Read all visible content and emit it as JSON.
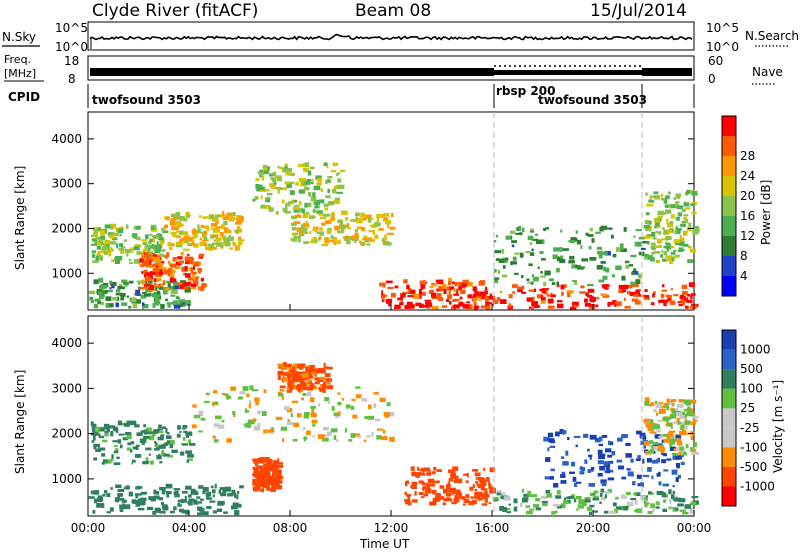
{
  "header": {
    "station": "Clyde River (fitACF)",
    "beam": "Beam 08",
    "date": "15/Jul/2014"
  },
  "noise_panel": {
    "left_label": "N.Sky",
    "left_ticks": [
      "10^5",
      "10^0"
    ],
    "right_ticks": [
      "10^5",
      "10^0"
    ],
    "right_label": "N.Search"
  },
  "freq_panel": {
    "left_label_1": "Freq.",
    "left_label_2": "[MHz]",
    "left_ticks": [
      "18",
      "8"
    ],
    "right_ticks": [
      "60",
      "0"
    ],
    "right_label": "Nave"
  },
  "cpid_panel": {
    "label": "CPID",
    "segments": [
      {
        "name": "twofsound 3503",
        "start_hour": 0,
        "end_hour": 16
      },
      {
        "name": "rbsp 200",
        "start_hour": 16,
        "end_hour": 22
      },
      {
        "name": "twofsound 3503",
        "start_hour": 22,
        "end_hour": 24
      }
    ]
  },
  "colors": {
    "power_scale": [
      "#0000ff",
      "#2040c8",
      "#2e7d32",
      "#4caf50",
      "#8bc34a",
      "#d7c300",
      "#ff9800",
      "#ff5a00",
      "#ff0000"
    ],
    "velocity_scale": [
      "#1a3fb0",
      "#2a62c6",
      "#2f7f5f",
      "#5fbf3f",
      "#c8c8c8",
      "#c8c8c8",
      "#ff8c00",
      "#ff4500",
      "#ff0000"
    ]
  },
  "chart_data": [
    {
      "type": "heatmap",
      "title": "",
      "xlabel": "",
      "ylabel": "Slant Range [km]",
      "xlim_hours": [
        0,
        24
      ],
      "ylim_km": [
        180,
        4600
      ],
      "y_ticks": [
        "1000",
        "2000",
        "3000",
        "4000"
      ],
      "colorbar": {
        "label": "Power [dB]",
        "ticks": [
          "4",
          "8",
          "12",
          "16",
          "20",
          "24",
          "28"
        ]
      },
      "echo_regions": [
        {
          "t0": 0.0,
          "t1": 4.0,
          "r0": 200,
          "r1": 800,
          "value": 12
        },
        {
          "t0": 0.1,
          "t1": 3.0,
          "r0": 1200,
          "r1": 2000,
          "value": 16
        },
        {
          "t0": 2.0,
          "t1": 4.5,
          "r0": 600,
          "r1": 1400,
          "value": 26
        },
        {
          "t0": 3.0,
          "t1": 6.0,
          "r0": 1500,
          "r1": 2300,
          "value": 20
        },
        {
          "t0": 6.5,
          "t1": 10.0,
          "r0": 2300,
          "r1": 3400,
          "value": 16
        },
        {
          "t0": 8.0,
          "t1": 12.0,
          "r0": 1600,
          "r1": 2300,
          "value": 20
        },
        {
          "t0": 11.5,
          "t1": 16.0,
          "r0": 180,
          "r1": 800,
          "value": 28
        },
        {
          "t0": 16.0,
          "t1": 24.0,
          "r0": 180,
          "r1": 700,
          "value": 28
        },
        {
          "t0": 16.0,
          "t1": 22.0,
          "r0": 700,
          "r1": 2000,
          "value": 12
        },
        {
          "t0": 22.0,
          "t1": 24.0,
          "r0": 1200,
          "r1": 2800,
          "value": 16
        }
      ]
    },
    {
      "type": "heatmap",
      "title": "",
      "xlabel": "Time UT",
      "ylabel": "Slant Range [km]",
      "xlim_hours": [
        0,
        24
      ],
      "ylim_km": [
        180,
        4600
      ],
      "x_ticks": [
        "00:00",
        "04:00",
        "08:00",
        "12:00",
        "16:00",
        "20:00",
        "00:00"
      ],
      "y_ticks": [
        "1000",
        "2000",
        "3000",
        "4000"
      ],
      "colorbar": {
        "label": "Velocity [m s⁻¹]",
        "ticks": [
          "1000",
          "500",
          "100",
          "25",
          "-25",
          "-100",
          "-500",
          "-1000"
        ]
      },
      "echo_regions": [
        {
          "t0": 0.0,
          "t1": 6.0,
          "r0": 200,
          "r1": 800,
          "value": 200
        },
        {
          "t0": 0.1,
          "t1": 4.0,
          "r0": 1300,
          "r1": 2200,
          "value": 150
        },
        {
          "t0": 4.0,
          "t1": 12.0,
          "r0": 1800,
          "r1": 3000,
          "value": 0
        },
        {
          "t0": 7.5,
          "t1": 9.5,
          "r0": 2900,
          "r1": 3500,
          "value": -150
        },
        {
          "t0": 6.5,
          "t1": 7.5,
          "r0": 700,
          "r1": 1400,
          "value": -300
        },
        {
          "t0": 12.5,
          "t1": 16.0,
          "r0": 400,
          "r1": 1200,
          "value": -300
        },
        {
          "t0": 16.0,
          "t1": 24.0,
          "r0": 200,
          "r1": 700,
          "value": 100
        },
        {
          "t0": 18.0,
          "t1": 23.5,
          "r0": 800,
          "r1": 2000,
          "value": 700
        },
        {
          "t0": 22.0,
          "t1": 24.0,
          "r0": 1500,
          "r1": 2700,
          "value": 0
        }
      ]
    }
  ],
  "x_axis_label": "Time UT"
}
